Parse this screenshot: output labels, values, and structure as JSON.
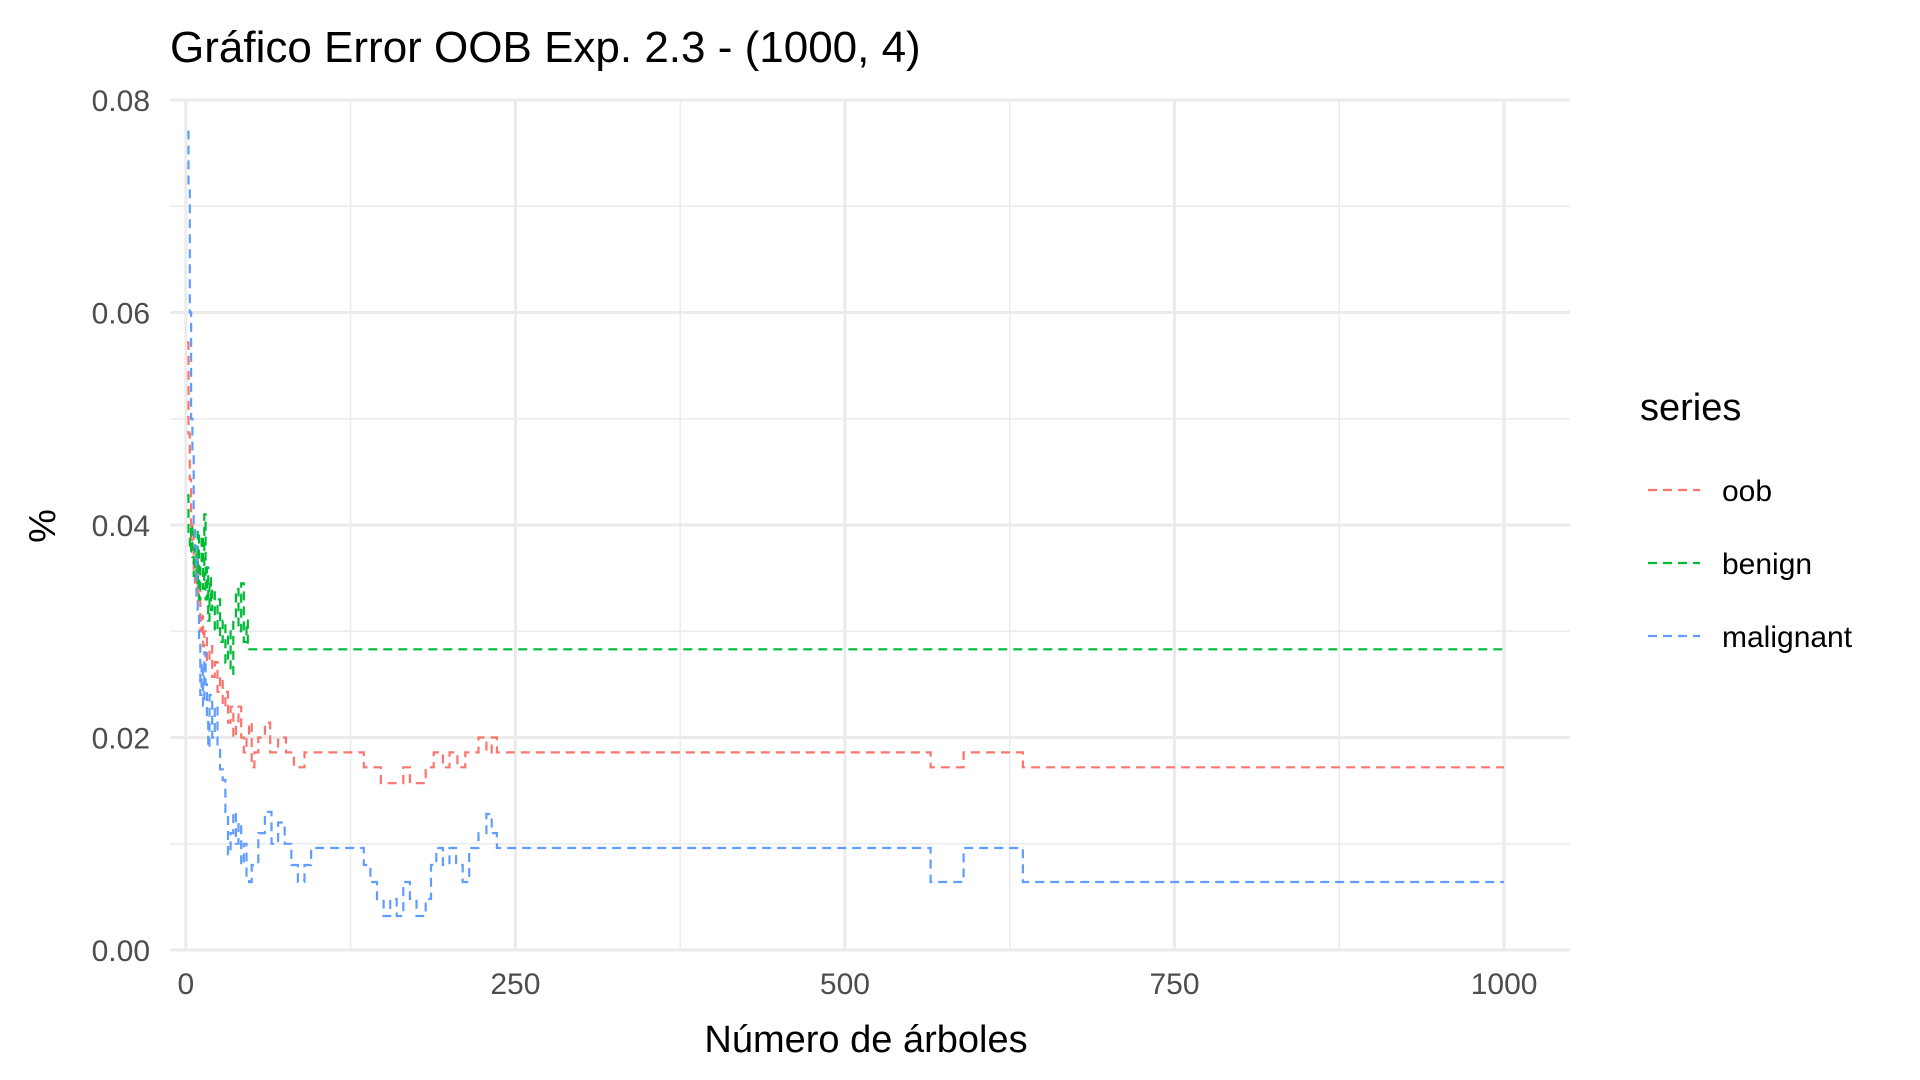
{
  "chart_data": {
    "type": "line",
    "title": "Gráfico Error OOB Exp. 2.3 - (1000, 4)",
    "xlabel": "Número de árboles",
    "ylabel": "%",
    "xlim": [
      -12,
      1050
    ],
    "ylim": [
      0,
      0.08
    ],
    "xticks": [
      0,
      250,
      500,
      750,
      1000
    ],
    "xtick_labels": [
      "0",
      "250",
      "500",
      "750",
      "1000"
    ],
    "yticks": [
      0,
      0.02,
      0.04,
      0.06,
      0.08
    ],
    "ytick_labels": [
      "0.00",
      "0.02",
      "0.04",
      "0.06",
      "0.08"
    ],
    "grid": true,
    "legend": {
      "title": "series",
      "position": "right"
    },
    "series": [
      {
        "name": "oob",
        "color": "#F8766D",
        "points": [
          [
            1,
            0.0572
          ],
          [
            2,
            0.0486
          ],
          [
            3,
            0.0443
          ],
          [
            4,
            0.0386
          ],
          [
            5,
            0.04
          ],
          [
            6,
            0.0357
          ],
          [
            7,
            0.0343
          ],
          [
            8,
            0.0372
          ],
          [
            9,
            0.0329
          ],
          [
            10,
            0.0343
          ],
          [
            11,
            0.03
          ],
          [
            12,
            0.0314
          ],
          [
            13,
            0.0286
          ],
          [
            14,
            0.03
          ],
          [
            16,
            0.0271
          ],
          [
            18,
            0.0286
          ],
          [
            20,
            0.0257
          ],
          [
            22,
            0.0271
          ],
          [
            24,
            0.0243
          ],
          [
            26,
            0.0257
          ],
          [
            28,
            0.0229
          ],
          [
            30,
            0.0243
          ],
          [
            32,
            0.0214
          ],
          [
            34,
            0.0229
          ],
          [
            36,
            0.02
          ],
          [
            38,
            0.0214
          ],
          [
            40,
            0.0229
          ],
          [
            42,
            0.02
          ],
          [
            44,
            0.0186
          ],
          [
            46,
            0.02
          ],
          [
            48,
            0.0214
          ],
          [
            50,
            0.0172
          ],
          [
            52,
            0.0186
          ],
          [
            55,
            0.02
          ],
          [
            60,
            0.0214
          ],
          [
            64,
            0.0186
          ],
          [
            70,
            0.02
          ],
          [
            76,
            0.0186
          ],
          [
            82,
            0.0172
          ],
          [
            90,
            0.0186
          ],
          [
            100,
            0.0186
          ],
          [
            110,
            0.0186
          ],
          [
            120,
            0.0186
          ],
          [
            130,
            0.0186
          ],
          [
            135,
            0.0172
          ],
          [
            142,
            0.0172
          ],
          [
            148,
            0.0157
          ],
          [
            160,
            0.0157
          ],
          [
            165,
            0.0172
          ],
          [
            170,
            0.0157
          ],
          [
            178,
            0.0157
          ],
          [
            182,
            0.0172
          ],
          [
            188,
            0.0186
          ],
          [
            195,
            0.0172
          ],
          [
            200,
            0.0186
          ],
          [
            206,
            0.0172
          ],
          [
            212,
            0.0186
          ],
          [
            222,
            0.02
          ],
          [
            228,
            0.0186
          ],
          [
            232,
            0.02
          ],
          [
            236,
            0.0186
          ],
          [
            300,
            0.0186
          ],
          [
            400,
            0.0186
          ],
          [
            500,
            0.0186
          ],
          [
            560,
            0.0186
          ],
          [
            565,
            0.0172
          ],
          [
            585,
            0.0172
          ],
          [
            590,
            0.0186
          ],
          [
            630,
            0.0186
          ],
          [
            635,
            0.0172
          ],
          [
            700,
            0.0172
          ],
          [
            800,
            0.0172
          ],
          [
            900,
            0.0172
          ],
          [
            1000,
            0.0172
          ]
        ]
      },
      {
        "name": "benign",
        "color": "#00BA38",
        "points": [
          [
            1,
            0.0428
          ],
          [
            2,
            0.039
          ],
          [
            3,
            0.0375
          ],
          [
            4,
            0.04
          ],
          [
            5,
            0.037
          ],
          [
            6,
            0.0352
          ],
          [
            7,
            0.038
          ],
          [
            8,
            0.0345
          ],
          [
            9,
            0.0395
          ],
          [
            10,
            0.033
          ],
          [
            11,
            0.036
          ],
          [
            12,
            0.039
          ],
          [
            13,
            0.034
          ],
          [
            14,
            0.041
          ],
          [
            15,
            0.033
          ],
          [
            16,
            0.036
          ],
          [
            17,
            0.031
          ],
          [
            18,
            0.035
          ],
          [
            19,
            0.032
          ],
          [
            20,
            0.034
          ],
          [
            22,
            0.03
          ],
          [
            24,
            0.033
          ],
          [
            26,
            0.029
          ],
          [
            28,
            0.031
          ],
          [
            30,
            0.027
          ],
          [
            32,
            0.03
          ],
          [
            34,
            0.026
          ],
          [
            36,
            0.031
          ],
          [
            38,
            0.034
          ],
          [
            40,
            0.03
          ],
          [
            42,
            0.0345
          ],
          [
            44,
            0.029
          ],
          [
            46,
            0.031
          ],
          [
            47,
            0.0283
          ],
          [
            100,
            0.0283
          ],
          [
            200,
            0.0283
          ],
          [
            300,
            0.0283
          ],
          [
            400,
            0.0283
          ],
          [
            500,
            0.0283
          ],
          [
            600,
            0.0283
          ],
          [
            700,
            0.0283
          ],
          [
            800,
            0.0283
          ],
          [
            900,
            0.0283
          ],
          [
            1000,
            0.0283
          ]
        ]
      },
      {
        "name": "malignant",
        "color": "#619CFF",
        "points": [
          [
            1,
            0.077
          ],
          [
            2,
            0.072
          ],
          [
            3,
            0.06
          ],
          [
            4,
            0.05
          ],
          [
            5,
            0.047
          ],
          [
            6,
            0.04
          ],
          [
            7,
            0.038
          ],
          [
            8,
            0.033
          ],
          [
            9,
            0.032
          ],
          [
            10,
            0.029
          ],
          [
            11,
            0.024
          ],
          [
            12,
            0.027
          ],
          [
            13,
            0.023
          ],
          [
            14,
            0.028
          ],
          [
            15,
            0.025
          ],
          [
            16,
            0.022
          ],
          [
            17,
            0.019
          ],
          [
            18,
            0.024
          ],
          [
            20,
            0.02
          ],
          [
            22,
            0.023
          ],
          [
            24,
            0.019
          ],
          [
            26,
            0.017
          ],
          [
            28,
            0.016
          ],
          [
            30,
            0.013
          ],
          [
            32,
            0.009
          ],
          [
            34,
            0.011
          ],
          [
            36,
            0.013
          ],
          [
            38,
            0.01
          ],
          [
            40,
            0.012
          ],
          [
            42,
            0.008
          ],
          [
            44,
            0.01
          ],
          [
            46,
            0.007
          ],
          [
            48,
            0.0064
          ],
          [
            50,
            0.008
          ],
          [
            55,
            0.011
          ],
          [
            60,
            0.013
          ],
          [
            65,
            0.01
          ],
          [
            70,
            0.012
          ],
          [
            75,
            0.01
          ],
          [
            80,
            0.008
          ],
          [
            85,
            0.0064
          ],
          [
            90,
            0.008
          ],
          [
            95,
            0.0096
          ],
          [
            100,
            0.0096
          ],
          [
            110,
            0.0096
          ],
          [
            120,
            0.0096
          ],
          [
            130,
            0.0096
          ],
          [
            135,
            0.008
          ],
          [
            140,
            0.0064
          ],
          [
            145,
            0.0048
          ],
          [
            150,
            0.0032
          ],
          [
            155,
            0.0048
          ],
          [
            160,
            0.0032
          ],
          [
            165,
            0.0064
          ],
          [
            170,
            0.0048
          ],
          [
            175,
            0.0032
          ],
          [
            182,
            0.0048
          ],
          [
            186,
            0.008
          ],
          [
            190,
            0.0096
          ],
          [
            195,
            0.008
          ],
          [
            200,
            0.0096
          ],
          [
            205,
            0.008
          ],
          [
            210,
            0.0064
          ],
          [
            215,
            0.0096
          ],
          [
            222,
            0.011
          ],
          [
            228,
            0.0128
          ],
          [
            232,
            0.011
          ],
          [
            236,
            0.0096
          ],
          [
            300,
            0.0096
          ],
          [
            400,
            0.0096
          ],
          [
            500,
            0.0096
          ],
          [
            560,
            0.0096
          ],
          [
            565,
            0.0064
          ],
          [
            585,
            0.0064
          ],
          [
            590,
            0.0096
          ],
          [
            630,
            0.0096
          ],
          [
            635,
            0.0064
          ],
          [
            700,
            0.0064
          ],
          [
            800,
            0.0064
          ],
          [
            900,
            0.0064
          ],
          [
            1000,
            0.0064
          ]
        ]
      }
    ]
  }
}
